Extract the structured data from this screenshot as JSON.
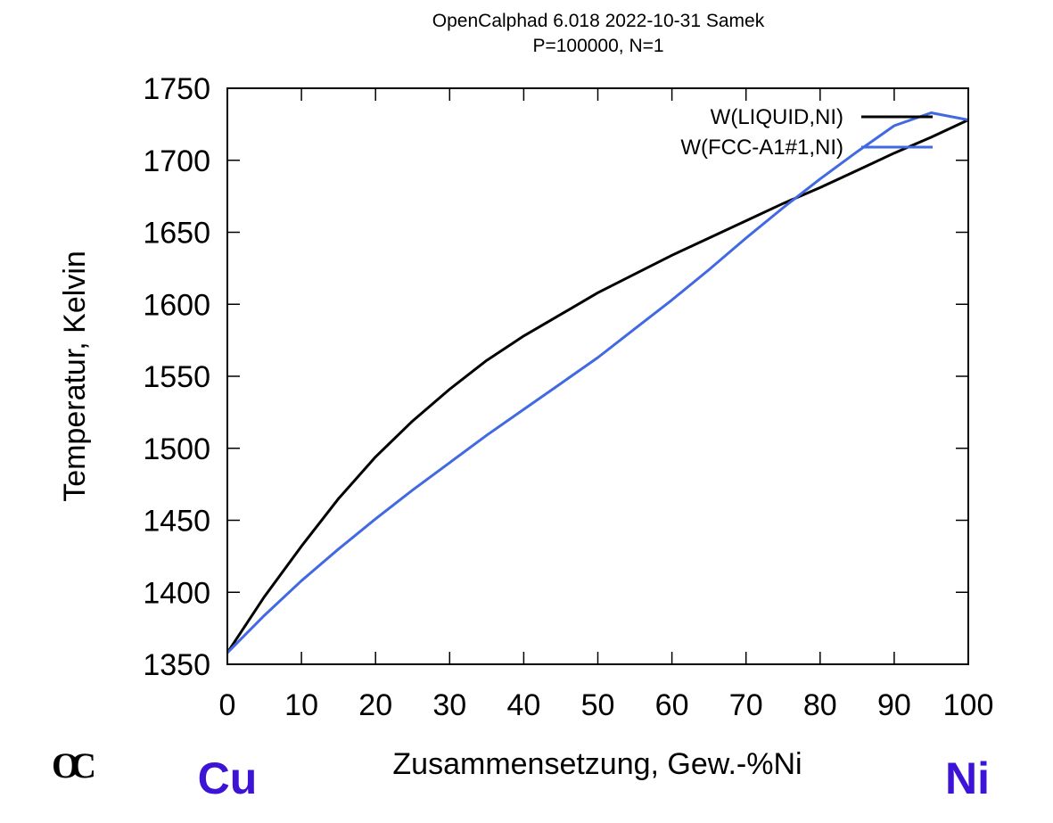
{
  "header": {
    "title_line1": "OpenCalphad 6.018 2022-10-31 Samek",
    "title_line2": "P=100000, N=1"
  },
  "logo_text": "OC",
  "element_labels": {
    "left": "Cu",
    "right": "Ni",
    "color": "#3d14d6"
  },
  "chart_data": {
    "type": "line",
    "xlabel": "Zusammensetzung, Gew.-%Ni",
    "ylabel": "Temperatur, Kelvin",
    "xlim": [
      0,
      100
    ],
    "ylim": [
      1350,
      1750
    ],
    "xticks": [
      0,
      10,
      20,
      30,
      40,
      50,
      60,
      70,
      80,
      90,
      100
    ],
    "yticks": [
      1350,
      1400,
      1450,
      1500,
      1550,
      1600,
      1650,
      1700,
      1750
    ],
    "grid": false,
    "legend_position": "top-right",
    "series": [
      {
        "name": "W(LIQUID,NI)",
        "color": "#000000",
        "x": [
          0,
          5,
          10,
          15,
          20,
          25,
          30,
          35,
          40,
          45,
          50,
          55,
          60,
          65,
          70,
          75,
          80,
          85,
          90,
          95,
          100
        ],
        "y": [
          1358,
          1397,
          1432,
          1465,
          1494,
          1519,
          1541,
          1561,
          1578,
          1593,
          1608,
          1621,
          1634,
          1646,
          1658,
          1670,
          1681,
          1693,
          1705,
          1716,
          1728
        ]
      },
      {
        "name": "W(FCC-A1#1,NI)",
        "color": "#4169e1",
        "x": [
          0,
          5,
          10,
          15,
          20,
          25,
          30,
          35,
          40,
          45,
          50,
          55,
          60,
          65,
          70,
          75,
          80,
          85,
          90,
          95,
          100
        ],
        "y": [
          1358,
          1384,
          1408,
          1430,
          1451,
          1471,
          1490,
          1509,
          1527,
          1545,
          1563,
          1583,
          1603,
          1624,
          1646,
          1667,
          1687,
          1706,
          1724,
          1733,
          1728
        ]
      }
    ]
  }
}
